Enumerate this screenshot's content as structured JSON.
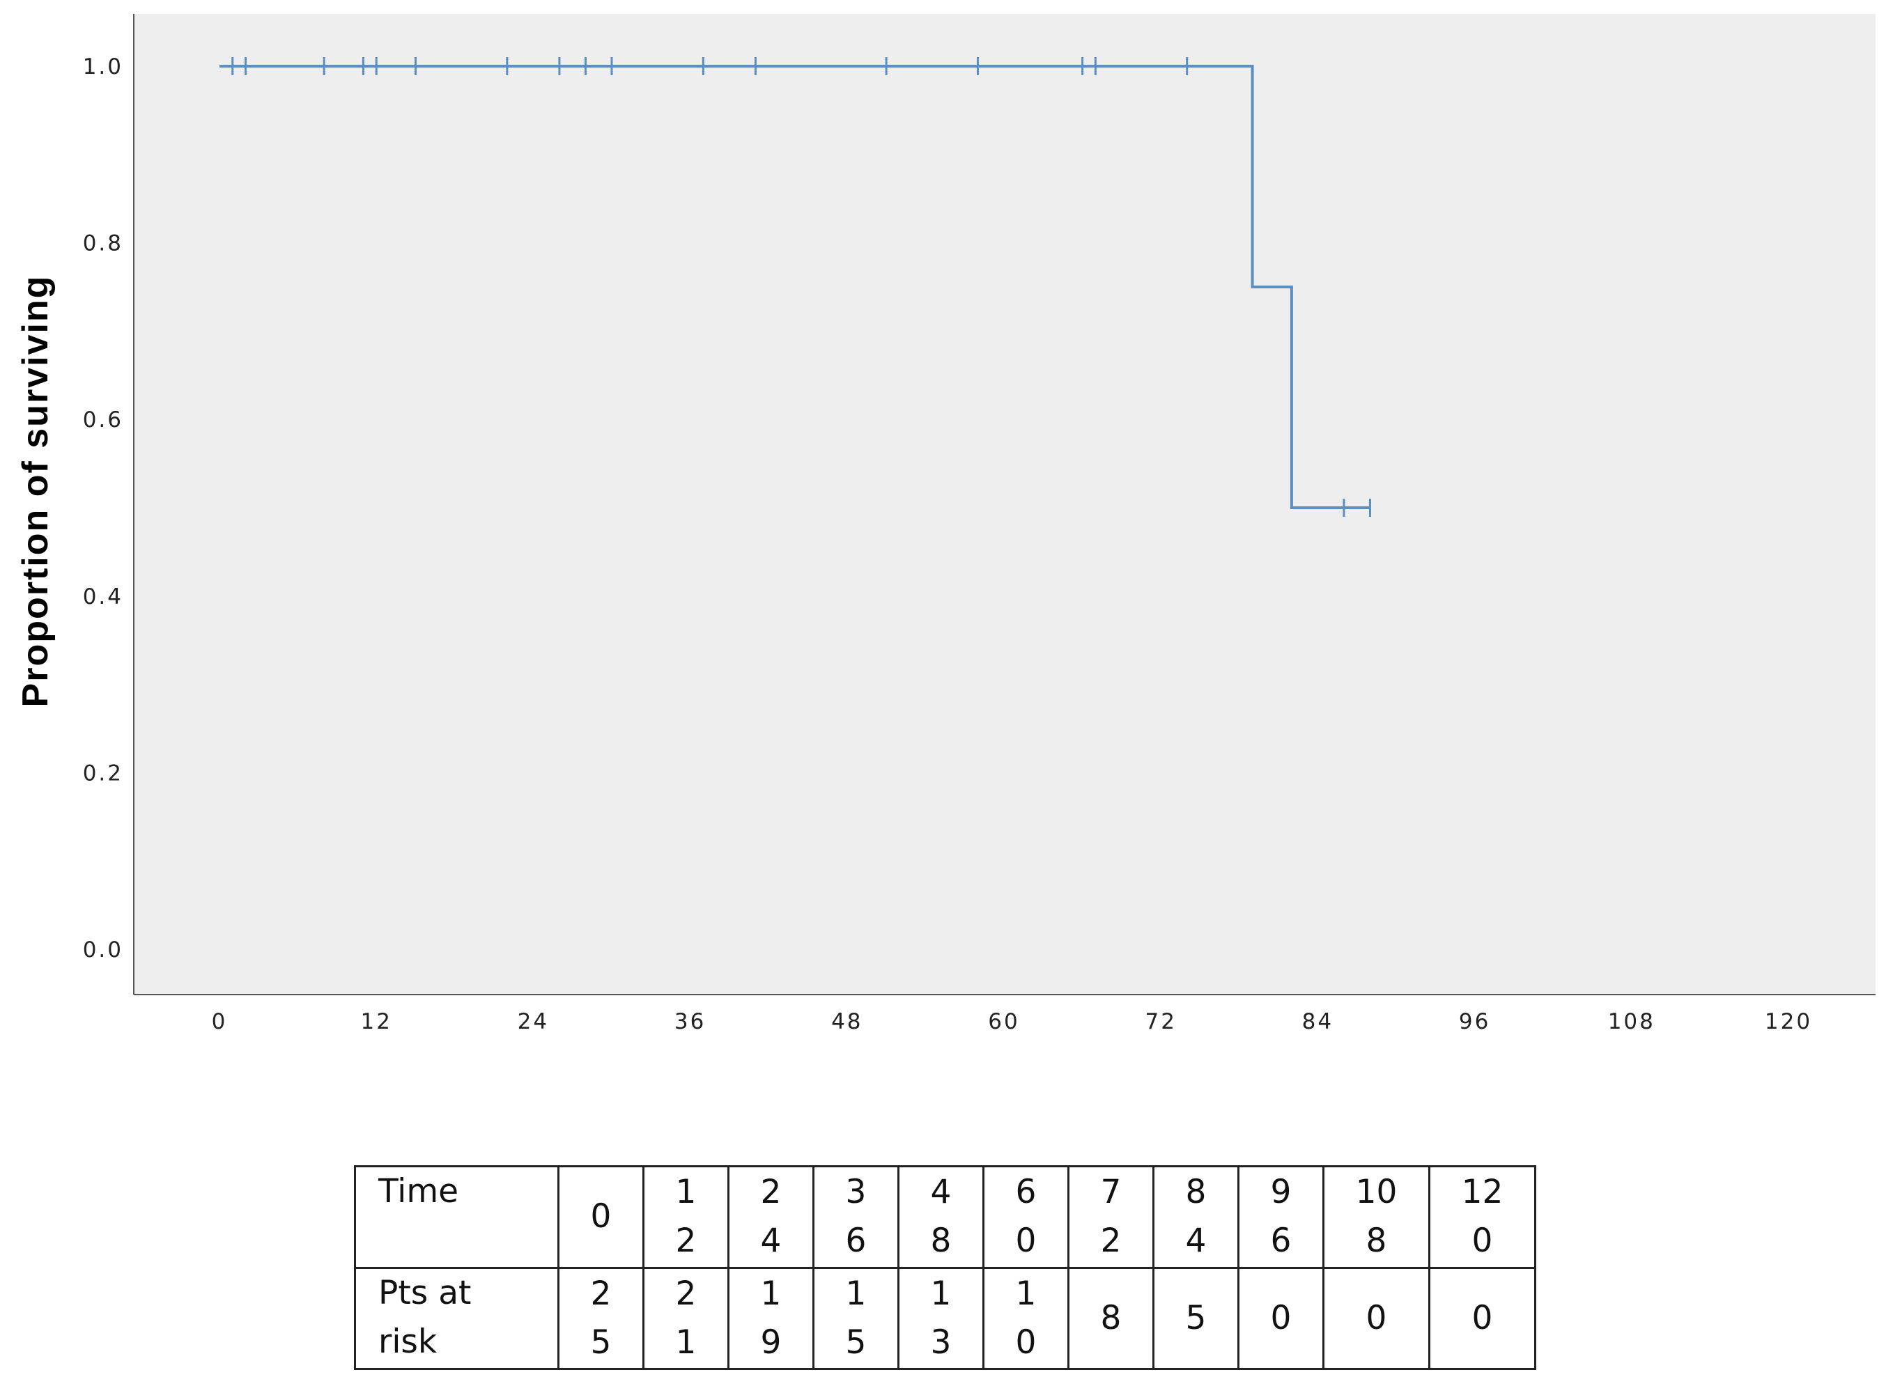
{
  "chart_data": {
    "type": "line",
    "title": "",
    "xlabel": "",
    "ylabel": "Proportion of surviving",
    "xlim": [
      0,
      120
    ],
    "ylim": [
      0,
      1.0
    ],
    "x_ticks": [
      "0",
      "12",
      "24",
      "36",
      "48",
      "60",
      "72",
      "84",
      "96",
      "108",
      "120"
    ],
    "y_ticks": [
      "0.0",
      "0.2",
      "0.4",
      "0.6",
      "0.8",
      "1.0"
    ],
    "grid": false,
    "legend": "none",
    "series": [
      {
        "step": true,
        "color": "#5b8fbf",
        "x": [
          0,
          79,
          79,
          82,
          82,
          88
        ],
        "y": [
          1.0,
          1.0,
          0.75,
          0.75,
          0.5,
          0.5
        ],
        "censored": [
          {
            "x": 1,
            "y": 1.0
          },
          {
            "x": 2,
            "y": 1.0
          },
          {
            "x": 8,
            "y": 1.0
          },
          {
            "x": 11,
            "y": 1.0
          },
          {
            "x": 12,
            "y": 1.0
          },
          {
            "x": 15,
            "y": 1.0
          },
          {
            "x": 22,
            "y": 1.0
          },
          {
            "x": 26,
            "y": 1.0
          },
          {
            "x": 28,
            "y": 1.0
          },
          {
            "x": 30,
            "y": 1.0
          },
          {
            "x": 37,
            "y": 1.0
          },
          {
            "x": 41,
            "y": 1.0
          },
          {
            "x": 51,
            "y": 1.0
          },
          {
            "x": 58,
            "y": 1.0
          },
          {
            "x": 66,
            "y": 1.0
          },
          {
            "x": 67,
            "y": 1.0
          },
          {
            "x": 74,
            "y": 1.0
          },
          {
            "x": 86,
            "y": 0.5
          },
          {
            "x": 88,
            "y": 0.5
          }
        ]
      }
    ],
    "risk_table": {
      "time_label": "Time",
      "risk_label": "Pts at risk",
      "times": [
        "0",
        "12",
        "24",
        "36",
        "48",
        "60",
        "72",
        "84",
        "96",
        "108",
        "120"
      ],
      "at_risk": [
        "25",
        "21",
        "19",
        "15",
        "13",
        "10",
        "8",
        "5",
        "0",
        "0",
        "0"
      ]
    }
  }
}
